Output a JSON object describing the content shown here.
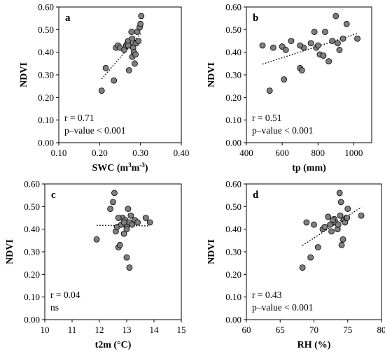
{
  "chart_data": [
    {
      "type": "scatter",
      "panel_label": "a",
      "xlabel_main": "SWC (m",
      "xlabel_sup1": "3",
      "xlabel_mid": "m",
      "xlabel_sup2": "-3",
      "xlabel_end": ")",
      "ylabel": "NDVI",
      "xlim": [
        0.1,
        0.4
      ],
      "ylim": [
        0.0,
        0.6
      ],
      "x_ticks": [
        "0.10",
        "0.20",
        "0.30",
        "0.40"
      ],
      "y_ticks": [
        "0.00",
        "0.10",
        "0.20",
        "0.30",
        "0.40",
        "0.50",
        "0.60"
      ],
      "stat_r": "r = 0.71",
      "stat_p": "p–value < 0.001",
      "trend": true,
      "point_color": "#7f7f7f",
      "x": [
        0.205,
        0.215,
        0.235,
        0.24,
        0.245,
        0.25,
        0.26,
        0.265,
        0.268,
        0.27,
        0.272,
        0.275,
        0.278,
        0.28,
        0.282,
        0.284,
        0.286,
        0.288,
        0.29,
        0.292,
        0.295,
        0.298,
        0.3,
        0.302,
        0.27,
        0.28
      ],
      "y": [
        0.23,
        0.33,
        0.275,
        0.42,
        0.43,
        0.42,
        0.41,
        0.43,
        0.44,
        0.45,
        0.32,
        0.43,
        0.49,
        0.38,
        0.42,
        0.4,
        0.35,
        0.39,
        0.44,
        0.49,
        0.45,
        0.51,
        0.525,
        0.56,
        0.43,
        0.46
      ]
    },
    {
      "type": "scatter",
      "panel_label": "b",
      "xlabel": "tp (mm)",
      "ylabel": "NDVI",
      "xlim": [
        400,
        1100
      ],
      "ylim": [
        0.0,
        0.6
      ],
      "x_ticks": [
        "400",
        "600",
        "800",
        "1000"
      ],
      "y_ticks": [
        "0.00",
        "0.10",
        "0.20",
        "0.30",
        "0.40",
        "0.50",
        "0.60"
      ],
      "stat_r": "r = 0.51",
      "stat_p": "p–value < 0.001",
      "trend": true,
      "point_color": "#7f7f7f",
      "x": [
        490,
        530,
        550,
        600,
        610,
        620,
        650,
        700,
        710,
        720,
        760,
        780,
        790,
        800,
        810,
        830,
        840,
        860,
        880,
        900,
        910,
        920,
        940,
        960,
        1020,
        700
      ],
      "y": [
        0.43,
        0.23,
        0.42,
        0.425,
        0.28,
        0.41,
        0.45,
        0.33,
        0.32,
        0.42,
        0.44,
        0.49,
        0.42,
        0.43,
        0.39,
        0.385,
        0.49,
        0.36,
        0.45,
        0.56,
        0.44,
        0.41,
        0.46,
        0.525,
        0.46,
        0.43
      ]
    },
    {
      "type": "scatter",
      "panel_label": "c",
      "xlabel": "t2m (°C)",
      "ylabel": "NDVI",
      "xlim": [
        10,
        15
      ],
      "ylim": [
        0.0,
        0.6
      ],
      "x_ticks": [
        "10",
        "11",
        "12",
        "13",
        "14",
        "15"
      ],
      "y_ticks": [
        "0.00",
        "0.10",
        "0.20",
        "0.30",
        "0.40",
        "0.50",
        "0.60"
      ],
      "stat_r": "r = 0.04",
      "stat_p": "ns",
      "trend": true,
      "point_color": "#7f7f7f",
      "x": [
        11.9,
        12.4,
        12.5,
        12.55,
        12.6,
        12.65,
        12.7,
        12.75,
        12.8,
        12.85,
        12.9,
        12.95,
        13.0,
        13.0,
        13.05,
        13.1,
        13.1,
        13.15,
        13.2,
        13.3,
        13.4,
        13.7,
        13.85,
        12.9,
        13.0,
        12.7
      ],
      "y": [
        0.355,
        0.49,
        0.52,
        0.56,
        0.39,
        0.41,
        0.32,
        0.33,
        0.42,
        0.45,
        0.38,
        0.44,
        0.275,
        0.41,
        0.49,
        0.43,
        0.23,
        0.46,
        0.42,
        0.44,
        0.43,
        0.45,
        0.43,
        0.43,
        0.4,
        0.45
      ]
    },
    {
      "type": "scatter",
      "panel_label": "d",
      "xlabel": "RH (%)",
      "ylabel": "NDVI",
      "xlim": [
        60,
        80
      ],
      "ylim": [
        0.0,
        0.6
      ],
      "x_ticks": [
        "60",
        "65",
        "70",
        "75",
        "80"
      ],
      "y_ticks": [
        "0.00",
        "0.10",
        "0.20",
        "0.30",
        "0.40",
        "0.50",
        "0.60"
      ],
      "stat_r": "r = 0.43",
      "stat_p": "p–value < 0.001",
      "trend": true,
      "point_color": "#7f7f7f",
      "x": [
        68.3,
        68.9,
        69.5,
        70.0,
        70.6,
        71.3,
        71.6,
        72.1,
        72.4,
        72.6,
        73.0,
        73.2,
        73.5,
        73.8,
        74.0,
        74.1,
        74.3,
        74.4,
        74.6,
        74.8,
        75.0,
        77.0,
        72.8,
        73.6,
        74.9,
        73.9
      ],
      "y": [
        0.23,
        0.43,
        0.275,
        0.42,
        0.32,
        0.4,
        0.41,
        0.455,
        0.42,
        0.39,
        0.445,
        0.43,
        0.4,
        0.56,
        0.52,
        0.33,
        0.355,
        0.44,
        0.43,
        0.45,
        0.49,
        0.46,
        0.44,
        0.42,
        0.45,
        0.46
      ]
    }
  ]
}
